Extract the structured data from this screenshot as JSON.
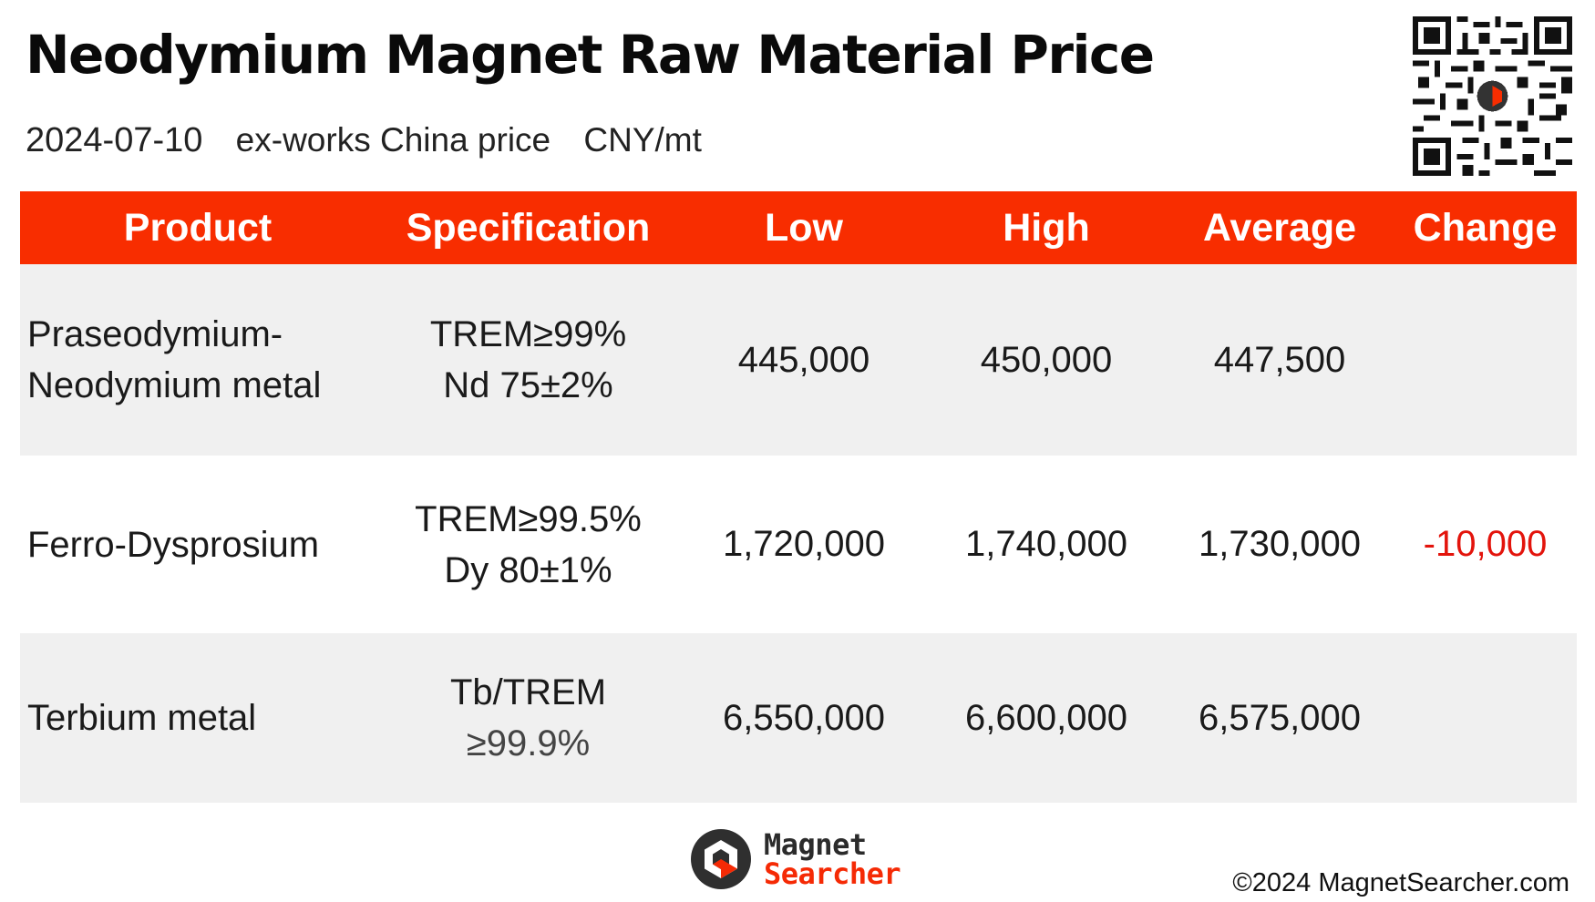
{
  "header": {
    "title": "Neodymium Magnet Raw Material Price",
    "date": "2024-07-10",
    "basis": "ex-works China price",
    "unit": "CNY/mt"
  },
  "table": {
    "columns": [
      "Product",
      "Specification",
      "Low",
      "High",
      "Average",
      "Change"
    ],
    "rows": [
      {
        "product_line1": "Praseodymium-",
        "product_line2": "Neodymium metal",
        "spec_line1": "TREM≥99%",
        "spec_line2": "Nd 75±2%",
        "low": "445,000",
        "high": "450,000",
        "average": "447,500",
        "change": ""
      },
      {
        "product_line1": "Ferro-Dysprosium",
        "product_line2": "",
        "spec_line1": "TREM≥99.5%",
        "spec_line2": "Dy 80±1%",
        "low": "1,720,000",
        "high": "1,740,000",
        "average": "1,730,000",
        "change": "-10,000"
      },
      {
        "product_line1": "Terbium metal",
        "product_line2": "",
        "spec_line1": "Tb/TREM",
        "spec_line2": "≥99.9%",
        "low": "6,550,000",
        "high": "6,600,000",
        "average": "6,575,000",
        "change": ""
      }
    ]
  },
  "brand": {
    "line1": "Magnet",
    "line2": "Searcher",
    "accent_color": "#f82d00"
  },
  "footer": {
    "copyright": "©2024 MagnetSearcher.com"
  },
  "icons": {
    "qr": "qr-code-icon",
    "logo": "magnet-searcher-logo-icon"
  }
}
